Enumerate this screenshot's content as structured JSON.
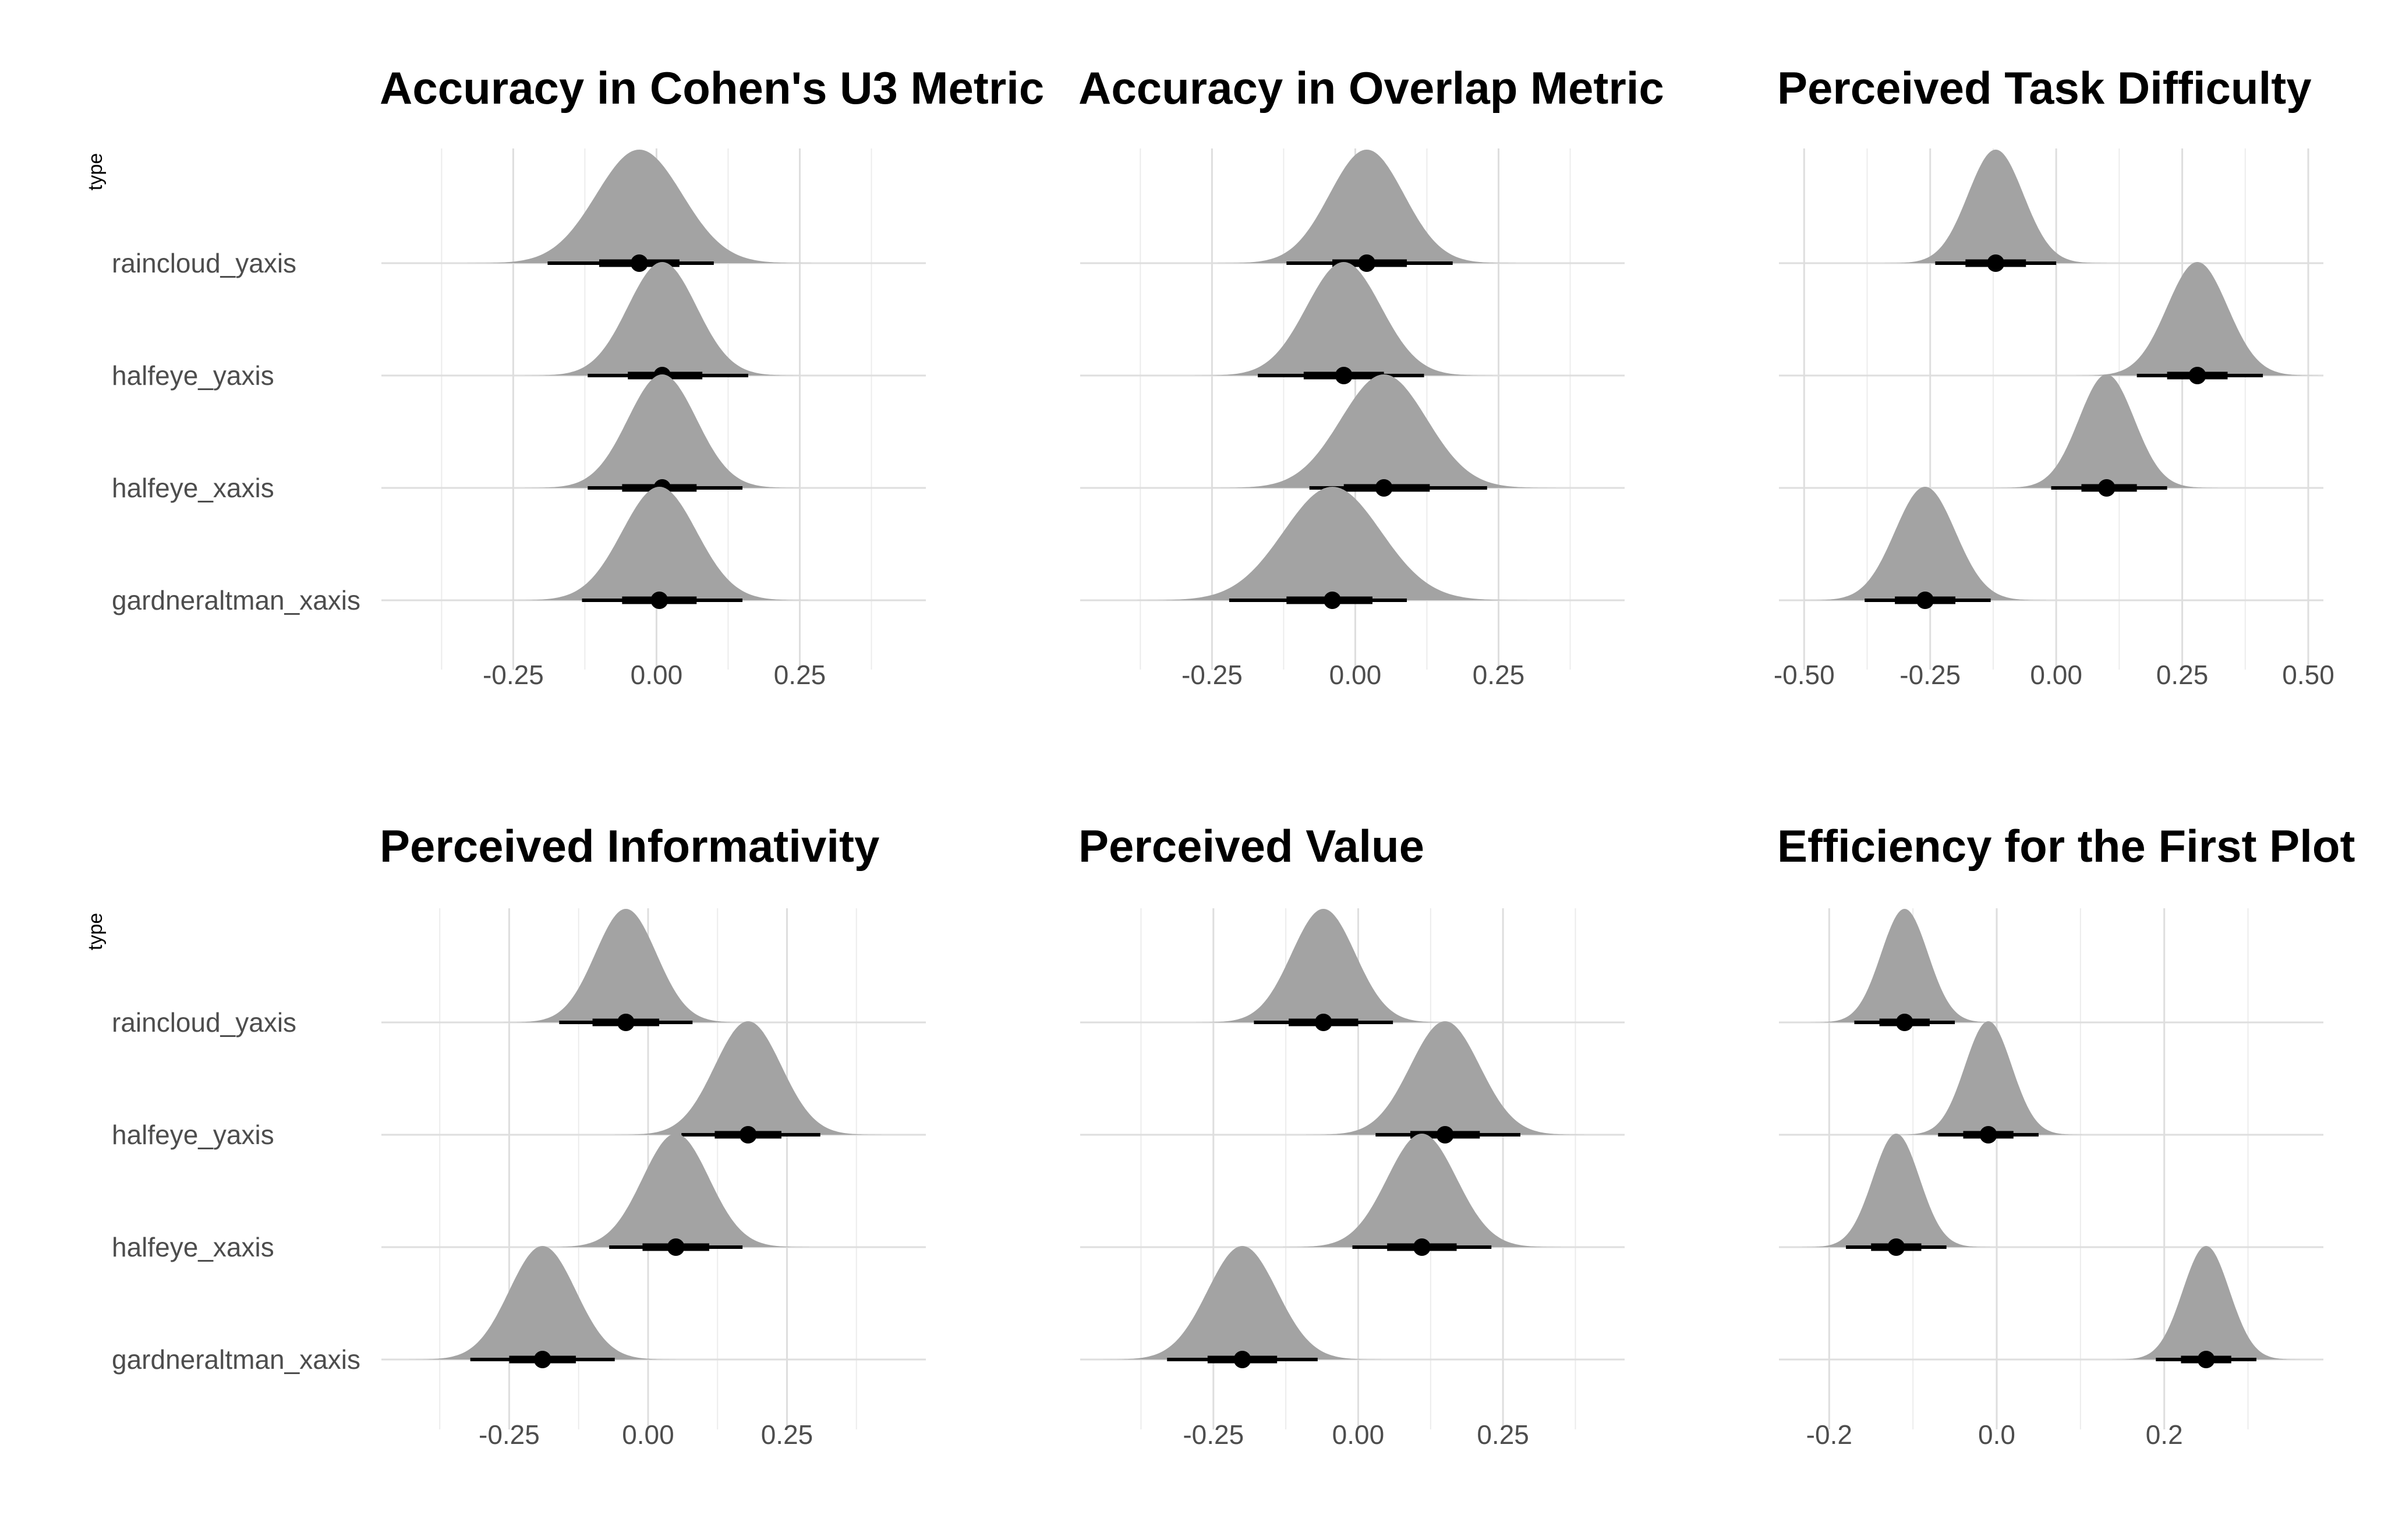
{
  "chart_data": [
    {
      "type": "halfeye",
      "title": "Accuracy in Cohen's U3 Metric",
      "ylabel": "type",
      "categories": [
        "raincloud_yaxis",
        "halfeye_yaxis",
        "halfeye_xaxis",
        "gardneraltman_xaxis"
      ],
      "xlim": [
        -0.48,
        0.47
      ],
      "xticks": [
        -0.25,
        0.0,
        0.25
      ],
      "xtick_labels": [
        "-0.25",
        "0.00",
        "0.25"
      ],
      "minor_ticks": [
        -0.375,
        -0.125,
        0.125,
        0.375
      ],
      "series": [
        {
          "category": "raincloud_yaxis",
          "median": -0.03,
          "sd": 0.075,
          "ci66": [
            -0.1,
            0.04
          ],
          "ci95": [
            -0.19,
            0.1
          ]
        },
        {
          "category": "halfeye_yaxis",
          "median": 0.01,
          "sd": 0.06,
          "ci66": [
            -0.05,
            0.08
          ],
          "ci95": [
            -0.12,
            0.16
          ]
        },
        {
          "category": "halfeye_xaxis",
          "median": 0.01,
          "sd": 0.06,
          "ci66": [
            -0.06,
            0.07
          ],
          "ci95": [
            -0.12,
            0.15
          ]
        },
        {
          "category": "gardneraltman_xaxis",
          "median": 0.005,
          "sd": 0.065,
          "ci66": [
            -0.06,
            0.07
          ],
          "ci95": [
            -0.13,
            0.15
          ]
        }
      ]
    },
    {
      "type": "halfeye",
      "title": "Accuracy in Overlap Metric",
      "ylabel": "",
      "categories": [
        "raincloud_yaxis",
        "halfeye_yaxis",
        "halfeye_xaxis",
        "gardneraltman_xaxis"
      ],
      "xlim": [
        -0.48,
        0.47
      ],
      "xticks": [
        -0.25,
        0.0,
        0.25
      ],
      "xtick_labels": [
        "-0.25",
        "0.00",
        "0.25"
      ],
      "minor_ticks": [
        -0.375,
        -0.125,
        0.125,
        0.375
      ],
      "series": [
        {
          "category": "raincloud_yaxis",
          "median": 0.02,
          "sd": 0.065,
          "ci66": [
            -0.04,
            0.09
          ],
          "ci95": [
            -0.12,
            0.17
          ]
        },
        {
          "category": "halfeye_yaxis",
          "median": -0.02,
          "sd": 0.065,
          "ci66": [
            -0.09,
            0.05
          ],
          "ci95": [
            -0.17,
            0.12
          ]
        },
        {
          "category": "halfeye_xaxis",
          "median": 0.05,
          "sd": 0.075,
          "ci66": [
            -0.02,
            0.13
          ],
          "ci95": [
            -0.08,
            0.23
          ]
        },
        {
          "category": "gardneraltman_xaxis",
          "median": -0.04,
          "sd": 0.085,
          "ci66": [
            -0.12,
            0.03
          ],
          "ci95": [
            -0.22,
            0.09
          ]
        }
      ]
    },
    {
      "type": "halfeye",
      "title": "Perceived Task Difficulty",
      "ylabel": "",
      "categories": [
        "raincloud_yaxis",
        "halfeye_yaxis",
        "halfeye_xaxis",
        "gardneraltman_xaxis"
      ],
      "xlim": [
        -0.55,
        0.53
      ],
      "xticks": [
        -0.5,
        -0.25,
        0.0,
        0.25,
        0.5
      ],
      "xtick_labels": [
        "-0.50",
        "-0.25",
        "0.00",
        "0.25",
        "0.50"
      ],
      "minor_ticks": [
        -0.375,
        -0.125,
        0.125,
        0.375
      ],
      "series": [
        {
          "category": "raincloud_yaxis",
          "median": -0.12,
          "sd": 0.055,
          "ci66": [
            -0.18,
            -0.06
          ],
          "ci95": [
            -0.24,
            0.0
          ]
        },
        {
          "category": "halfeye_yaxis",
          "median": 0.28,
          "sd": 0.06,
          "ci66": [
            0.22,
            0.34
          ],
          "ci95": [
            0.16,
            0.41
          ]
        },
        {
          "category": "halfeye_xaxis",
          "median": 0.1,
          "sd": 0.055,
          "ci66": [
            0.05,
            0.16
          ],
          "ci95": [
            -0.01,
            0.22
          ]
        },
        {
          "category": "gardneraltman_xaxis",
          "median": -0.26,
          "sd": 0.06,
          "ci66": [
            -0.32,
            -0.2
          ],
          "ci95": [
            -0.38,
            -0.13
          ]
        }
      ]
    },
    {
      "type": "halfeye",
      "title": "Perceived Informativity",
      "ylabel": "type",
      "categories": [
        "raincloud_yaxis",
        "halfeye_yaxis",
        "halfeye_xaxis",
        "gardneraltman_xaxis"
      ],
      "xlim": [
        -0.48,
        0.5
      ],
      "xticks": [
        -0.25,
        0.0,
        0.25
      ],
      "xtick_labels": [
        "-0.25",
        "0.00",
        "0.25"
      ],
      "minor_ticks": [
        -0.375,
        -0.125,
        0.125,
        0.375
      ],
      "series": [
        {
          "category": "raincloud_yaxis",
          "median": -0.04,
          "sd": 0.055,
          "ci66": [
            -0.1,
            0.02
          ],
          "ci95": [
            -0.16,
            0.08
          ]
        },
        {
          "category": "halfeye_yaxis",
          "median": 0.18,
          "sd": 0.06,
          "ci66": [
            0.12,
            0.24
          ],
          "ci95": [
            0.06,
            0.31
          ]
        },
        {
          "category": "halfeye_xaxis",
          "median": 0.05,
          "sd": 0.06,
          "ci66": [
            -0.01,
            0.11
          ],
          "ci95": [
            -0.07,
            0.17
          ]
        },
        {
          "category": "gardneraltman_xaxis",
          "median": -0.19,
          "sd": 0.06,
          "ci66": [
            -0.25,
            -0.13
          ],
          "ci95": [
            -0.32,
            -0.06
          ]
        }
      ]
    },
    {
      "type": "halfeye",
      "title": "Perceived Value",
      "ylabel": "",
      "categories": [
        "raincloud_yaxis",
        "halfeye_yaxis",
        "halfeye_xaxis",
        "gardneraltman_xaxis"
      ],
      "xlim": [
        -0.48,
        0.46
      ],
      "xticks": [
        -0.25,
        0.0,
        0.25
      ],
      "xtick_labels": [
        "-0.25",
        "0.00",
        "0.25"
      ],
      "minor_ticks": [
        -0.375,
        -0.125,
        0.125,
        0.375
      ],
      "series": [
        {
          "category": "raincloud_yaxis",
          "median": -0.06,
          "sd": 0.055,
          "ci66": [
            -0.12,
            0.0
          ],
          "ci95": [
            -0.18,
            0.06
          ]
        },
        {
          "category": "halfeye_yaxis",
          "median": 0.15,
          "sd": 0.06,
          "ci66": [
            0.09,
            0.21
          ],
          "ci95": [
            0.03,
            0.28
          ]
        },
        {
          "category": "halfeye_xaxis",
          "median": 0.11,
          "sd": 0.06,
          "ci66": [
            0.05,
            0.17
          ],
          "ci95": [
            -0.01,
            0.23
          ]
        },
        {
          "category": "gardneraltman_xaxis",
          "median": -0.2,
          "sd": 0.06,
          "ci66": [
            -0.26,
            -0.14
          ],
          "ci95": [
            -0.33,
            -0.07
          ]
        }
      ]
    },
    {
      "type": "halfeye",
      "title": "Efficiency for the First Plot",
      "ylabel": "",
      "categories": [
        "raincloud_yaxis",
        "halfeye_yaxis",
        "halfeye_xaxis",
        "gardneraltman_xaxis"
      ],
      "xlim": [
        -0.26,
        0.39
      ],
      "xticks": [
        -0.2,
        0.0,
        0.2
      ],
      "xtick_labels": [
        "-0.2",
        "0.0",
        "0.2"
      ],
      "minor_ticks": [
        -0.1,
        0.1,
        0.3
      ],
      "series": [
        {
          "category": "raincloud_yaxis",
          "median": -0.11,
          "sd": 0.028,
          "ci66": [
            -0.14,
            -0.08
          ],
          "ci95": [
            -0.17,
            -0.05
          ]
        },
        {
          "category": "halfeye_yaxis",
          "median": -0.01,
          "sd": 0.028,
          "ci66": [
            -0.04,
            0.02
          ],
          "ci95": [
            -0.07,
            0.05
          ]
        },
        {
          "category": "halfeye_xaxis",
          "median": -0.12,
          "sd": 0.028,
          "ci66": [
            -0.15,
            -0.09
          ],
          "ci95": [
            -0.18,
            -0.06
          ]
        },
        {
          "category": "gardneraltman_xaxis",
          "median": 0.25,
          "sd": 0.028,
          "ci66": [
            0.22,
            0.28
          ],
          "ci95": [
            0.19,
            0.31
          ]
        }
      ]
    }
  ]
}
